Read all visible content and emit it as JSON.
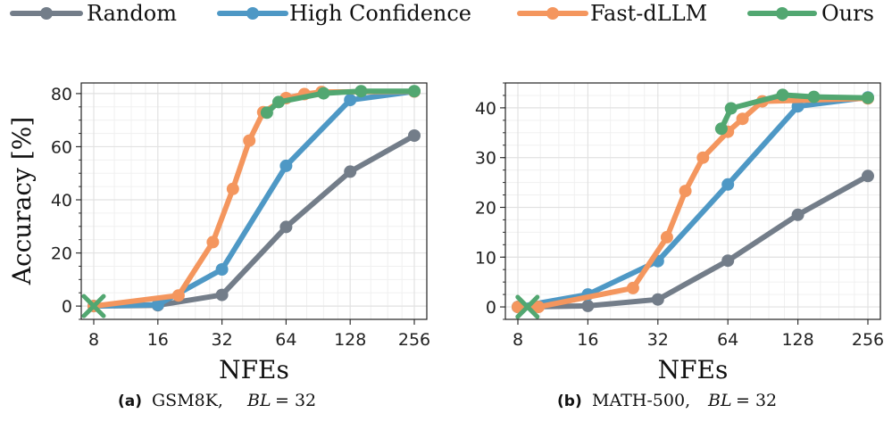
{
  "legend": [
    {
      "name": "Random",
      "color": "#737d89"
    },
    {
      "name": "High Confidence",
      "color": "#4e98c5"
    },
    {
      "name": "Fast-dLLM",
      "color": "#f4965e"
    },
    {
      "name": "Ours",
      "color": "#52a771"
    }
  ],
  "chart_data": [
    {
      "type": "line",
      "xscale": "log2",
      "xticks": [
        "8",
        "16",
        "32",
        "64",
        "128",
        "256"
      ],
      "xlim": [
        8,
        256
      ],
      "xlabel": "NFEs",
      "ylabel": "Accuracy [%]",
      "ylim": [
        -5,
        84
      ],
      "yticks": [
        "0",
        "20",
        "40",
        "60",
        "80"
      ],
      "grid": true,
      "caption": {
        "label": "(a)",
        "dataset": "GSM8K,",
        "bl_var": "BL",
        "bl_value": "= 32"
      },
      "series": [
        {
          "name": "Random",
          "points": [
            [
              8,
              0
            ],
            [
              16,
              0.3
            ],
            [
              32,
              4.2
            ],
            [
              64,
              29.8
            ],
            [
              128,
              50.6
            ],
            [
              256,
              64.2
            ]
          ]
        },
        {
          "name": "High Confidence",
          "points": [
            [
              8,
              0
            ],
            [
              16,
              0.5
            ],
            [
              32,
              13.8
            ],
            [
              64,
              52.8
            ],
            [
              128,
              77.6
            ],
            [
              256,
              80.8
            ]
          ]
        },
        {
          "name": "Fast-dLLM",
          "points": [
            [
              8,
              0
            ],
            [
              20,
              4
            ],
            [
              29,
              24.1
            ],
            [
              36,
              44.1
            ],
            [
              43,
              62.3
            ],
            [
              50,
              73
            ],
            [
              64,
              78.3
            ],
            [
              78,
              79.8
            ],
            [
              94,
              80.6
            ],
            [
              256,
              80.8
            ]
          ]
        },
        {
          "name": "Ours",
          "points": [
            [
              52,
              72.8
            ],
            [
              59,
              76.8
            ],
            [
              96,
              80.1
            ],
            [
              144,
              80.9
            ],
            [
              256,
              80.9
            ]
          ]
        }
      ],
      "failure_marker": {
        "series": "Ours",
        "x": 8,
        "y": 0
      }
    },
    {
      "type": "line",
      "xscale": "log2",
      "xticks": [
        "8",
        "16",
        "32",
        "64",
        "128",
        "256"
      ],
      "xlim": [
        8,
        256
      ],
      "xlabel": "NFEs",
      "ylabel": "",
      "ylim": [
        -2.5,
        45
      ],
      "yticks": [
        "0",
        "10",
        "20",
        "30",
        "40"
      ],
      "grid": true,
      "caption": {
        "label": "(b)",
        "dataset": "MATH-500,",
        "bl_var": "BL",
        "bl_value": "= 32"
      },
      "series": [
        {
          "name": "Random",
          "points": [
            [
              8,
              0
            ],
            [
              16,
              0.2
            ],
            [
              32,
              1.5
            ],
            [
              64,
              9.3
            ],
            [
              128,
              18.5
            ],
            [
              256,
              26.3
            ]
          ]
        },
        {
          "name": "High Confidence",
          "points": [
            [
              8,
              0
            ],
            [
              16,
              2.5
            ],
            [
              32,
              9.2
            ],
            [
              64,
              24.6
            ],
            [
              128,
              40.3
            ],
            [
              256,
              42.1
            ]
          ]
        },
        {
          "name": "Fast-dLLM",
          "points": [
            [
              8,
              0
            ],
            [
              9.8,
              0
            ],
            [
              25,
              3.8
            ],
            [
              35,
              14
            ],
            [
              42,
              23.3
            ],
            [
              50,
              30
            ],
            [
              64,
              35.2
            ],
            [
              74,
              37.8
            ],
            [
              90,
              41.3
            ],
            [
              256,
              41.9
            ]
          ]
        },
        {
          "name": "Ours",
          "points": [
            [
              60,
              35.8
            ],
            [
              66,
              39.9
            ],
            [
              110,
              42.6
            ],
            [
              150,
              42.2
            ],
            [
              256,
              42
            ]
          ]
        }
      ],
      "failure_marker": {
        "series": "Ours",
        "x": 8.8,
        "y": 0
      }
    }
  ]
}
